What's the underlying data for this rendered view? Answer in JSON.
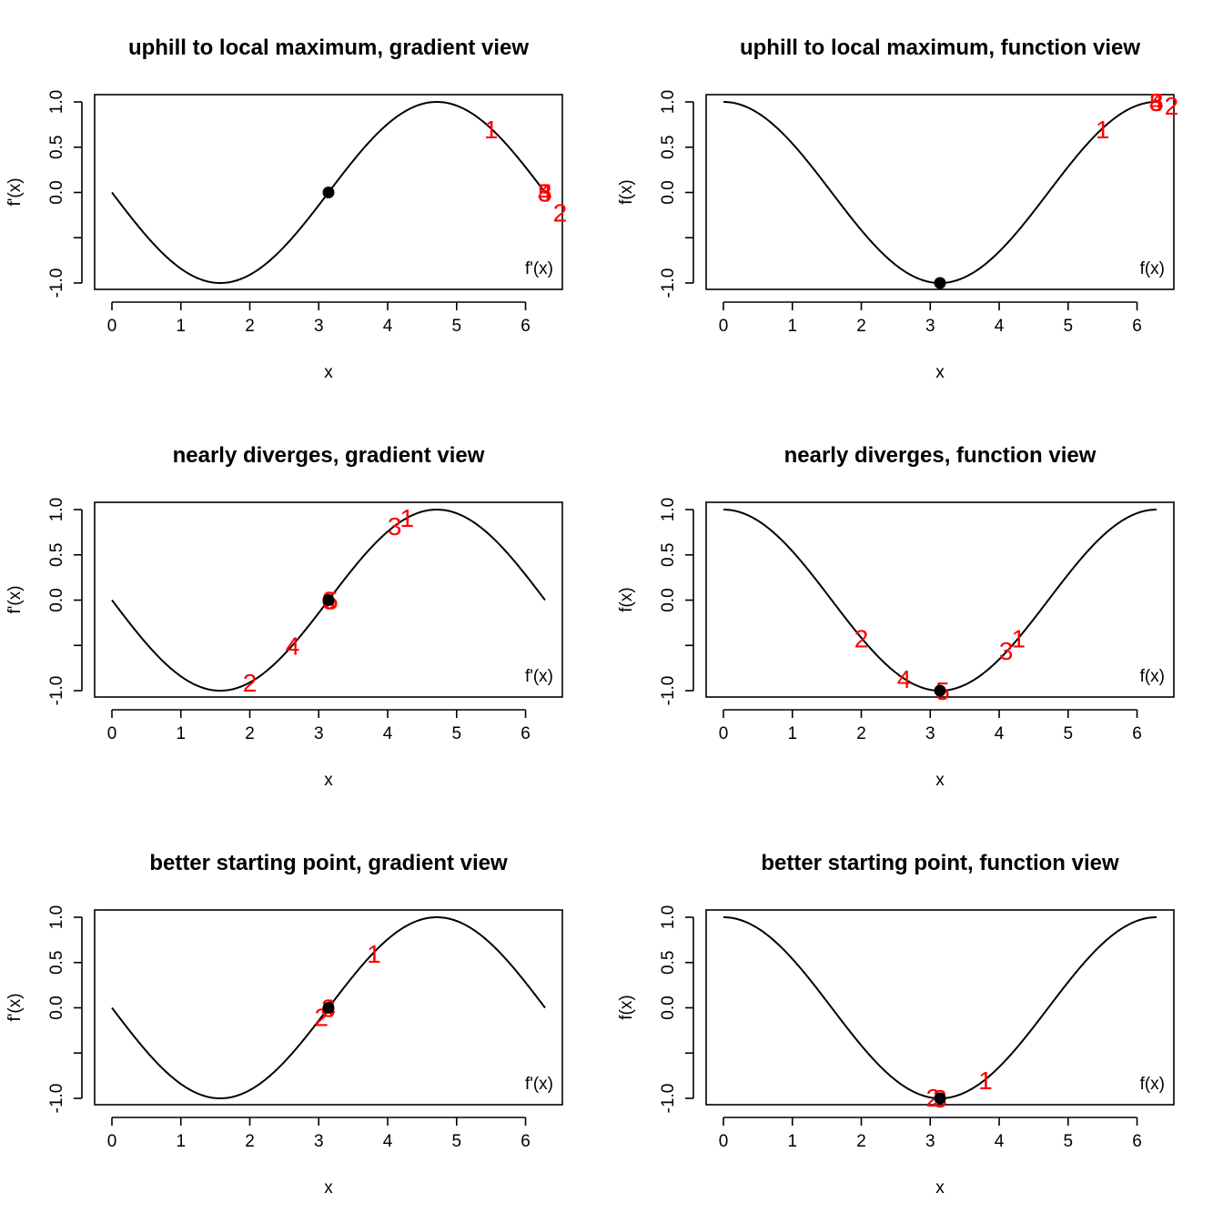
{
  "chart_data": [
    {
      "type": "line",
      "panel": "top-left",
      "title": "uphill to local maximum, gradient view",
      "xlabel": "x",
      "ylabel": "f'(x)",
      "legend_text": "f'(x)",
      "legend_position": "bottom-right",
      "curve": "-sin(x)",
      "xlim": [
        0,
        6.2832
      ],
      "ylim": [
        -1,
        1
      ],
      "x_ticks": [
        0,
        1,
        2,
        3,
        4,
        5,
        6
      ],
      "y_ticks": [
        -1.0,
        -0.5,
        0.0,
        0.5,
        1.0
      ],
      "y_tick_labels": [
        "-1.0",
        "",
        "0.0",
        "0.5",
        "1.0"
      ],
      "target_point": {
        "x": 3.1416,
        "y": 0.0
      },
      "iterations": [
        {
          "label": "1",
          "x": 5.5,
          "y": 0.7
        },
        {
          "label": "2",
          "x": 6.5,
          "y": -0.22
        },
        {
          "label": "3",
          "x": 6.28,
          "y": 0.0
        },
        {
          "label": "4",
          "x": 6.28,
          "y": 0.0
        },
        {
          "label": "5",
          "x": 6.28,
          "y": 0.0
        }
      ],
      "grid": false
    },
    {
      "type": "line",
      "panel": "top-right",
      "title": "uphill to local maximum, function view",
      "xlabel": "x",
      "ylabel": "f(x)",
      "legend_text": "f(x)",
      "legend_position": "bottom-right",
      "curve": "cos(x)",
      "xlim": [
        0,
        6.2832
      ],
      "ylim": [
        -1,
        1
      ],
      "x_ticks": [
        0,
        1,
        2,
        3,
        4,
        5,
        6
      ],
      "y_ticks": [
        -1.0,
        -0.5,
        0.0,
        0.5,
        1.0
      ],
      "y_tick_labels": [
        "-1.0",
        "",
        "0.0",
        "0.5",
        "1.0"
      ],
      "target_point": {
        "x": 3.1416,
        "y": -1.0
      },
      "iterations": [
        {
          "label": "1",
          "x": 5.5,
          "y": 0.7
        },
        {
          "label": "2",
          "x": 6.5,
          "y": 0.96
        },
        {
          "label": "3",
          "x": 6.28,
          "y": 1.0
        },
        {
          "label": "4",
          "x": 6.28,
          "y": 1.0
        },
        {
          "label": "5",
          "x": 6.28,
          "y": 1.0
        }
      ],
      "grid": false
    },
    {
      "type": "line",
      "panel": "middle-left",
      "title": "nearly diverges, gradient view",
      "xlabel": "x",
      "ylabel": "f'(x)",
      "legend_text": "f'(x)",
      "legend_position": "bottom-right",
      "curve": "-sin(x)",
      "xlim": [
        0,
        6.2832
      ],
      "ylim": [
        -1,
        1
      ],
      "x_ticks": [
        0,
        1,
        2,
        3,
        4,
        5,
        6
      ],
      "y_ticks": [
        -1.0,
        -0.5,
        0.0,
        0.5,
        1.0
      ],
      "y_tick_labels": [
        "-1.0",
        "",
        "0.0",
        "0.5",
        "1.0"
      ],
      "target_point": {
        "x": 3.1416,
        "y": 0.0
      },
      "iterations": [
        {
          "label": "1",
          "x": 4.28,
          "y": 0.91
        },
        {
          "label": "2",
          "x": 2.0,
          "y": -0.91
        },
        {
          "label": "3",
          "x": 4.1,
          "y": 0.82
        },
        {
          "label": "4",
          "x": 2.62,
          "y": -0.5
        },
        {
          "label": "5",
          "x": 3.18,
          "y": 0.0
        },
        {
          "label": "6",
          "x": 3.14,
          "y": 0.0
        }
      ],
      "grid": false
    },
    {
      "type": "line",
      "panel": "middle-right",
      "title": "nearly diverges, function view",
      "xlabel": "x",
      "ylabel": "f(x)",
      "legend_text": "f(x)",
      "legend_position": "bottom-right",
      "curve": "cos(x)",
      "xlim": [
        0,
        6.2832
      ],
      "ylim": [
        -1,
        1
      ],
      "x_ticks": [
        0,
        1,
        2,
        3,
        4,
        5,
        6
      ],
      "y_ticks": [
        -1.0,
        -0.5,
        0.0,
        0.5,
        1.0
      ],
      "y_tick_labels": [
        "-1.0",
        "",
        "0.0",
        "0.5",
        "1.0"
      ],
      "target_point": {
        "x": 3.1416,
        "y": -1.0
      },
      "iterations": [
        {
          "label": "1",
          "x": 4.28,
          "y": -0.42
        },
        {
          "label": "2",
          "x": 2.0,
          "y": -0.42
        },
        {
          "label": "3",
          "x": 4.1,
          "y": -0.56
        },
        {
          "label": "4",
          "x": 2.62,
          "y": -0.87
        },
        {
          "label": "5",
          "x": 3.18,
          "y": -1.0
        }
      ],
      "grid": false
    },
    {
      "type": "line",
      "panel": "bottom-left",
      "title": "better starting point, gradient view",
      "xlabel": "x",
      "ylabel": "f'(x)",
      "legend_text": "f'(x)",
      "legend_position": "bottom-right",
      "curve": "-sin(x)",
      "xlim": [
        0,
        6.2832
      ],
      "ylim": [
        -1,
        1
      ],
      "x_ticks": [
        0,
        1,
        2,
        3,
        4,
        5,
        6
      ],
      "y_ticks": [
        -1.0,
        -0.5,
        0.0,
        0.5,
        1.0
      ],
      "y_tick_labels": [
        "-1.0",
        "",
        "0.0",
        "0.5",
        "1.0"
      ],
      "target_point": {
        "x": 3.1416,
        "y": 0.0
      },
      "iterations": [
        {
          "label": "1",
          "x": 3.8,
          "y": 0.6
        },
        {
          "label": "2",
          "x": 3.04,
          "y": -0.1
        },
        {
          "label": "3",
          "x": 3.14,
          "y": 0.0
        },
        {
          "label": "4",
          "x": 3.14,
          "y": 0.0
        }
      ],
      "grid": false
    },
    {
      "type": "line",
      "panel": "bottom-right",
      "title": "better starting point, function view",
      "xlabel": "x",
      "ylabel": "f(x)",
      "legend_text": "f(x)",
      "legend_position": "bottom-right",
      "curve": "cos(x)",
      "xlim": [
        0,
        6.2832
      ],
      "ylim": [
        -1,
        1
      ],
      "x_ticks": [
        0,
        1,
        2,
        3,
        4,
        5,
        6
      ],
      "y_ticks": [
        -1.0,
        -0.5,
        0.0,
        0.5,
        1.0
      ],
      "y_tick_labels": [
        "-1.0",
        "",
        "0.0",
        "0.5",
        "1.0"
      ],
      "target_point": {
        "x": 3.1416,
        "y": -1.0
      },
      "iterations": [
        {
          "label": "1",
          "x": 3.8,
          "y": -0.8
        },
        {
          "label": "2",
          "x": 3.04,
          "y": -0.99
        },
        {
          "label": "3",
          "x": 3.14,
          "y": -1.0
        }
      ],
      "grid": false
    }
  ]
}
